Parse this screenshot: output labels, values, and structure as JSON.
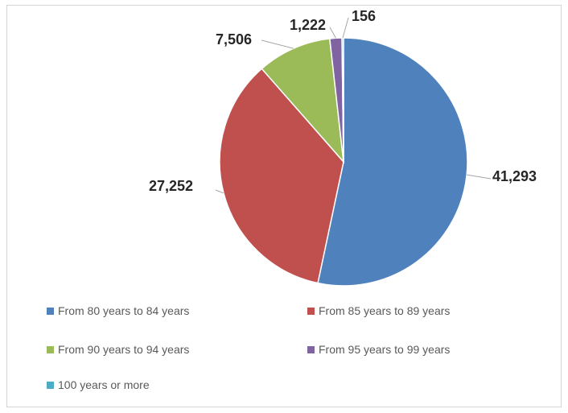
{
  "chart_data": {
    "type": "pie",
    "title": "",
    "slices": [
      {
        "label": "From 80 years to 84 years",
        "value": 41293,
        "display": "41,293",
        "color": "#4f81bd"
      },
      {
        "label": "From 85 years to 89 years",
        "value": 27252,
        "display": "27,252",
        "color": "#c0504d"
      },
      {
        "label": "From 90 years to 94 years",
        "value": 7506,
        "display": "7,506",
        "color": "#9bbb59"
      },
      {
        "label": "From 95 years to 99 years",
        "value": 1222,
        "display": "1,222",
        "color": "#8064a2"
      },
      {
        "label": "100 years or more",
        "value": 156,
        "display": "156",
        "color": "#4bacc6"
      }
    ],
    "legend_position": "bottom",
    "data_labels": "outside-end"
  }
}
